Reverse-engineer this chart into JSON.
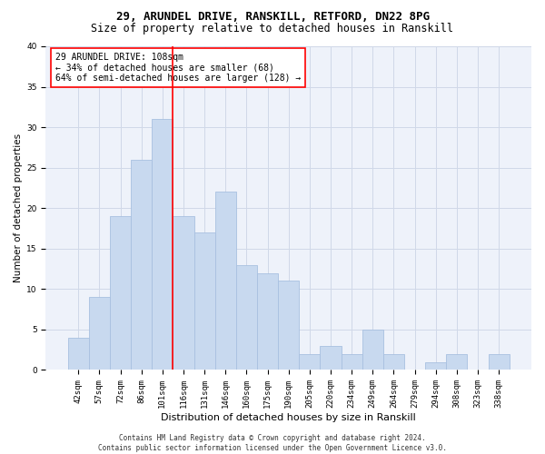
{
  "title1": "29, ARUNDEL DRIVE, RANSKILL, RETFORD, DN22 8PG",
  "title2": "Size of property relative to detached houses in Ranskill",
  "xlabel": "Distribution of detached houses by size in Ranskill",
  "ylabel": "Number of detached properties",
  "bar_labels": [
    "42sqm",
    "57sqm",
    "72sqm",
    "86sqm",
    "101sqm",
    "116sqm",
    "131sqm",
    "146sqm",
    "160sqm",
    "175sqm",
    "190sqm",
    "205sqm",
    "220sqm",
    "234sqm",
    "249sqm",
    "264sqm",
    "279sqm",
    "294sqm",
    "308sqm",
    "323sqm",
    "338sqm"
  ],
  "bar_heights": [
    4,
    9,
    19,
    26,
    31,
    19,
    17,
    22,
    13,
    12,
    11,
    2,
    3,
    2,
    5,
    2,
    0,
    1,
    2,
    0,
    2
  ],
  "bar_color": "#c8d9ef",
  "bar_edge_color": "#a8c0e0",
  "vline_x_index": 4.5,
  "vline_color": "red",
  "annotation_text": "29 ARUNDEL DRIVE: 108sqm\n← 34% of detached houses are smaller (68)\n64% of semi-detached houses are larger (128) →",
  "annotation_box_color": "white",
  "annotation_box_edge": "red",
  "ylim": [
    0,
    40
  ],
  "yticks": [
    0,
    5,
    10,
    15,
    20,
    25,
    30,
    35,
    40
  ],
  "footer1": "Contains HM Land Registry data © Crown copyright and database right 2024.",
  "footer2": "Contains public sector information licensed under the Open Government Licence v3.0.",
  "grid_color": "#d0d8e8",
  "background_color": "#eef2fa",
  "title1_fontsize": 9,
  "title2_fontsize": 8.5,
  "xlabel_fontsize": 8,
  "ylabel_fontsize": 7.5,
  "tick_fontsize": 6.5,
  "annotation_fontsize": 7,
  "footer_fontsize": 5.5
}
